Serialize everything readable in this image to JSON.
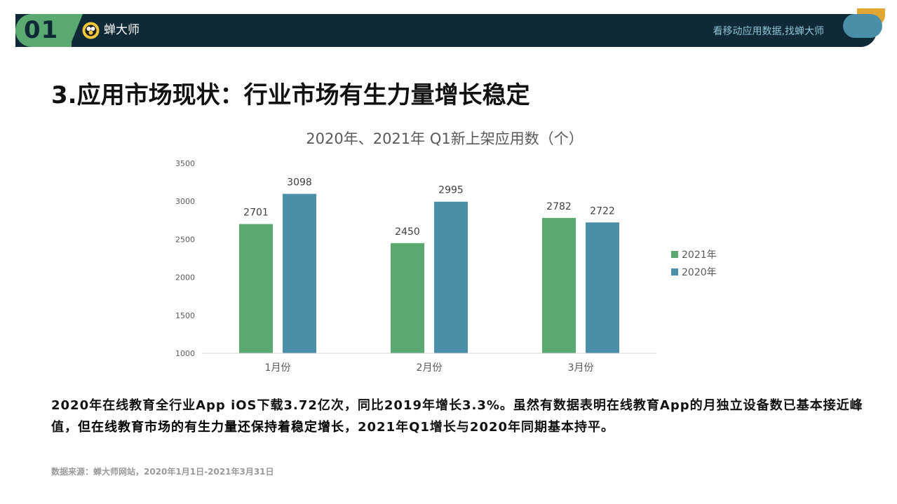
{
  "header": {
    "page_number": "01",
    "brand_name": "蝉大师",
    "slogan": "看移动应用数据,找蝉大师"
  },
  "slide_title": "3.应用市场现状：行业市场有生力量增长稳定",
  "chart_data": {
    "type": "bar",
    "title": "2020年、2021年 Q1新上架应用数（个）",
    "categories": [
      "1月份",
      "2月份",
      "3月份"
    ],
    "series": [
      {
        "name": "2021年",
        "color": "#5aa971",
        "values": [
          2701,
          2450,
          2782
        ]
      },
      {
        "name": "2020年",
        "color": "#4a8fa8",
        "values": [
          3098,
          2995,
          2722
        ]
      }
    ],
    "ylim": [
      1000,
      3500
    ],
    "yticks": [
      1000,
      1500,
      2000,
      2500,
      3000,
      3500
    ],
    "grid": false,
    "legend": "right"
  },
  "summary": {
    "part1": "2020年在线教育全行业App iOS下载3.72亿次，同比2019年增长3.3%。虽然有数据表明在线教育App的月独立设备数已基本接近峰值，",
    "emphasis": "但在线教育市场的有生力量还保持着稳定增长",
    "part2": "，2021年Q1增长与2020年同期基本持平。"
  },
  "source": "数据来源：蝉大师网站，2020年1月1日-2021年3月31日"
}
